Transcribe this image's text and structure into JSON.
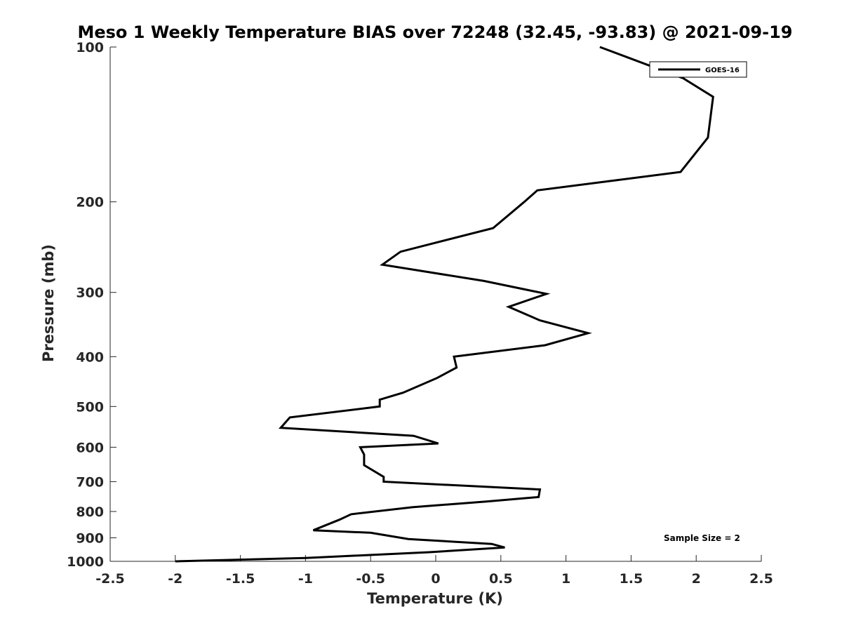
{
  "chart_data": {
    "type": "line",
    "title": "Meso 1 Weekly Temperature BIAS over 72248 (32.45, -93.83) @ 2021-09-19",
    "xlabel": "Temperature (K)",
    "ylabel": "Pressure (mb)",
    "xlim": [
      -2.5,
      2.5
    ],
    "ylim": [
      100,
      1000
    ],
    "y_scale": "log",
    "y_reversed": true,
    "x_ticks": [
      -2.5,
      -2,
      -1.5,
      -1,
      -0.5,
      0,
      0.5,
      1,
      1.5,
      2,
      2.5
    ],
    "x_tick_labels": [
      "-2.5",
      "-2",
      "-1.5",
      "-1",
      "-0.5",
      "0",
      "0.5",
      "1",
      "1.5",
      "2",
      "2.5"
    ],
    "y_ticks": [
      100,
      200,
      300,
      400,
      500,
      600,
      700,
      800,
      900,
      1000
    ],
    "y_tick_labels": [
      "100",
      "200",
      "300",
      "400",
      "500",
      "600",
      "700",
      "800",
      "900",
      "1000"
    ],
    "grid": false,
    "legend_position": "top-right",
    "annotation": "Sample Size = 2",
    "series": [
      {
        "name": "GOES-16",
        "color": "#000000",
        "points": [
          {
            "x": 1.26,
            "y": 100
          },
          {
            "x": 1.9,
            "y": 115
          },
          {
            "x": 2.13,
            "y": 125
          },
          {
            "x": 2.09,
            "y": 150
          },
          {
            "x": 1.88,
            "y": 175
          },
          {
            "x": 0.78,
            "y": 190
          },
          {
            "x": 0.68,
            "y": 200
          },
          {
            "x": 0.44,
            "y": 225
          },
          {
            "x": -0.27,
            "y": 250
          },
          {
            "x": -0.41,
            "y": 265
          },
          {
            "x": 0.37,
            "y": 285
          },
          {
            "x": 0.85,
            "y": 302
          },
          {
            "x": 0.56,
            "y": 320
          },
          {
            "x": 0.8,
            "y": 340
          },
          {
            "x": 1.17,
            "y": 360
          },
          {
            "x": 0.84,
            "y": 380
          },
          {
            "x": 0.14,
            "y": 400
          },
          {
            "x": 0.16,
            "y": 420
          },
          {
            "x": 0.01,
            "y": 440
          },
          {
            "x": -0.25,
            "y": 470
          },
          {
            "x": -0.43,
            "y": 485
          },
          {
            "x": -0.43,
            "y": 500
          },
          {
            "x": -1.12,
            "y": 525
          },
          {
            "x": -1.19,
            "y": 550
          },
          {
            "x": -0.17,
            "y": 570
          },
          {
            "x": 0.02,
            "y": 590
          },
          {
            "x": -0.58,
            "y": 600
          },
          {
            "x": -0.55,
            "y": 620
          },
          {
            "x": -0.55,
            "y": 650
          },
          {
            "x": -0.4,
            "y": 685
          },
          {
            "x": -0.4,
            "y": 700
          },
          {
            "x": 0.8,
            "y": 725
          },
          {
            "x": 0.79,
            "y": 750
          },
          {
            "x": 0.39,
            "y": 765
          },
          {
            "x": -0.18,
            "y": 785
          },
          {
            "x": -0.65,
            "y": 810
          },
          {
            "x": -0.74,
            "y": 830
          },
          {
            "x": -0.94,
            "y": 870
          },
          {
            "x": -0.5,
            "y": 880
          },
          {
            "x": -0.21,
            "y": 905
          },
          {
            "x": 0.43,
            "y": 925
          },
          {
            "x": 0.53,
            "y": 940
          },
          {
            "x": -0.05,
            "y": 960
          },
          {
            "x": -1.0,
            "y": 985
          },
          {
            "x": -2.0,
            "y": 1000
          }
        ]
      }
    ]
  }
}
